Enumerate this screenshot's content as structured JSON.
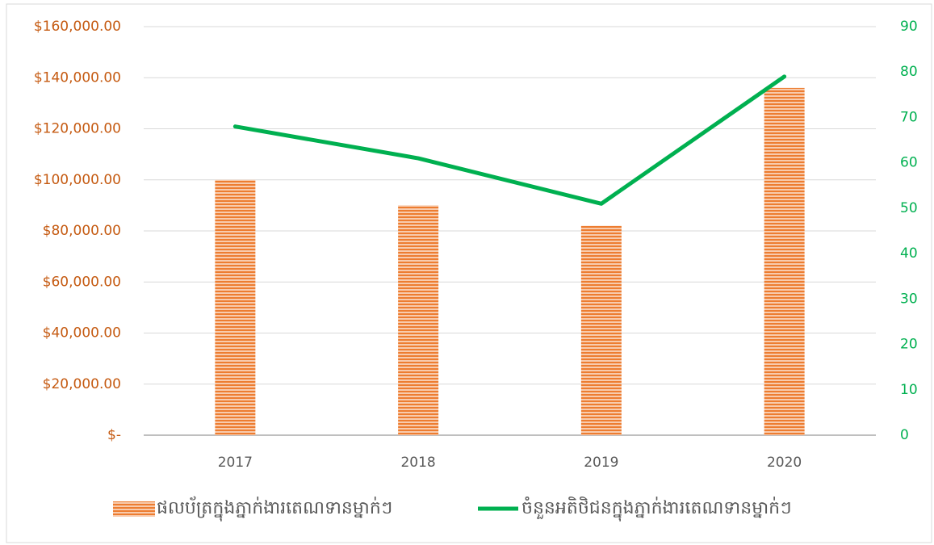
{
  "chart_data": {
    "type": "bar-line",
    "categories": [
      "2017",
      "2018",
      "2019",
      "2020"
    ],
    "series": [
      {
        "name": "ផលប័ត្រក្នុងភ្នាក់ងារតេណទានម្នាក់ៗ",
        "color": "#ed7d31",
        "type": "bar",
        "axis": "y",
        "values": [
          100000,
          90000,
          82000,
          136000
        ]
      },
      {
        "name": "ចំនួនអតិថិជនក្នុងភ្នាក់ងារតេណទានម្នាក់ៗ",
        "color": "#00b050",
        "type": "line",
        "axis": "y2",
        "values": [
          68,
          61,
          51,
          79
        ]
      }
    ],
    "ylim": [
      0,
      160000
    ],
    "yticks": [
      {
        "value": 0,
        "label": "$-"
      },
      {
        "value": 20000,
        "label": "$20,000.00"
      },
      {
        "value": 40000,
        "label": "$40,000.00"
      },
      {
        "value": 60000,
        "label": "$60,000.00"
      },
      {
        "value": 80000,
        "label": "$80,000.00"
      },
      {
        "value": 100000,
        "label": "$100,000.00"
      },
      {
        "value": 120000,
        "label": "$120,000.00"
      },
      {
        "value": 140000,
        "label": "$140,000.00"
      },
      {
        "value": 160000,
        "label": "$160,000.00"
      }
    ],
    "y2lim": [
      0,
      90
    ],
    "y2ticks": [
      0,
      10,
      20,
      30,
      40,
      50,
      60,
      70,
      80,
      90
    ],
    "grid": true,
    "legend": "bottom"
  }
}
